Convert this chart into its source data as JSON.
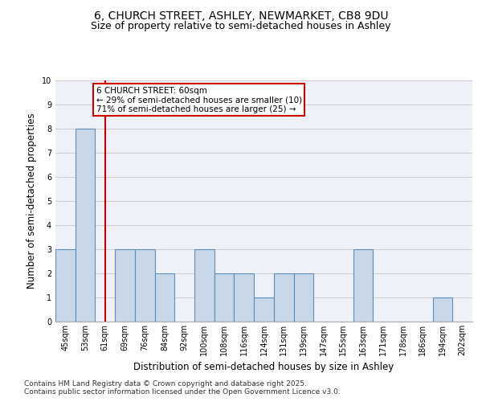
{
  "title_line1": "6, CHURCH STREET, ASHLEY, NEWMARKET, CB8 9DU",
  "title_line2": "Size of property relative to semi-detached houses in Ashley",
  "xlabel": "Distribution of semi-detached houses by size in Ashley",
  "ylabel": "Number of semi-detached properties",
  "categories": [
    "45sqm",
    "53sqm",
    "61sqm",
    "69sqm",
    "76sqm",
    "84sqm",
    "92sqm",
    "100sqm",
    "108sqm",
    "116sqm",
    "124sqm",
    "131sqm",
    "139sqm",
    "147sqm",
    "155sqm",
    "163sqm",
    "171sqm",
    "178sqm",
    "186sqm",
    "194sqm",
    "202sqm"
  ],
  "values": [
    3,
    8,
    0,
    3,
    3,
    2,
    0,
    3,
    2,
    2,
    1,
    2,
    2,
    0,
    0,
    3,
    0,
    0,
    0,
    1,
    0
  ],
  "bar_color": "#c8d8e8",
  "bar_edge_color": "#5b8db8",
  "highlight_index": 2,
  "highlight_line_color": "#cc0000",
  "highlight_label": "6 CHURCH STREET: 60sqm",
  "annotation_smaller": "← 29% of semi-detached houses are smaller (10)",
  "annotation_larger": "71% of semi-detached houses are larger (25) →",
  "box_edge_color": "#cc0000",
  "ylim": [
    0,
    10
  ],
  "yticks": [
    0,
    1,
    2,
    3,
    4,
    5,
    6,
    7,
    8,
    9,
    10
  ],
  "grid_color": "#cccccc",
  "bg_color": "#eef2f8",
  "footer": "Contains HM Land Registry data © Crown copyright and database right 2025.\nContains public sector information licensed under the Open Government Licence v3.0.",
  "title_fontsize": 10,
  "subtitle_fontsize": 9,
  "label_fontsize": 8.5,
  "tick_fontsize": 7,
  "footer_fontsize": 6.5,
  "annotation_fontsize": 7.5
}
